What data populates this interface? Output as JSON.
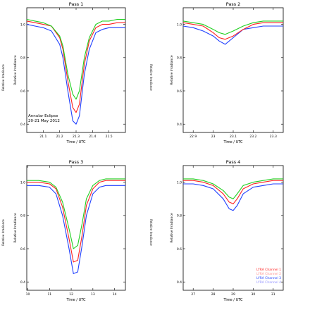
{
  "figure": {
    "ylabel_left_outer": "Relative Irradiance",
    "ylabel_right_outer": "Relative Irradiance"
  },
  "chart_data": [
    {
      "type": "line",
      "title": "Pass 1",
      "xlabel": "Time / UTC",
      "ylabel": "Relative Irradiance",
      "xlim": [
        21.0,
        21.6
      ],
      "ylim": [
        0.35,
        1.1
      ],
      "xticks": [
        21.1,
        21.2,
        21.3,
        21.4,
        21.5
      ],
      "yticks": [
        0.4,
        0.6,
        0.8,
        1.0
      ],
      "annotation": [
        "Annular Eclipse",
        "20-21 May 2012"
      ],
      "grid": false,
      "series": [
        {
          "color": "#2040ff",
          "x": [
            21.0,
            21.05,
            21.1,
            21.15,
            21.2,
            21.22,
            21.25,
            21.28,
            21.3,
            21.32,
            21.35,
            21.38,
            21.42,
            21.46,
            21.5,
            21.55,
            21.6
          ],
          "y": [
            1.0,
            0.99,
            0.98,
            0.96,
            0.88,
            0.8,
            0.6,
            0.42,
            0.4,
            0.45,
            0.7,
            0.85,
            0.95,
            0.97,
            0.98,
            0.98,
            0.98
          ]
        },
        {
          "color": "#ff2020",
          "x": [
            21.0,
            21.05,
            21.1,
            21.15,
            21.2,
            21.22,
            21.25,
            21.28,
            21.3,
            21.32,
            21.35,
            21.38,
            21.42,
            21.46,
            21.5,
            21.55,
            21.6
          ],
          "y": [
            1.02,
            1.01,
            1.0,
            0.99,
            0.92,
            0.85,
            0.66,
            0.5,
            0.47,
            0.52,
            0.76,
            0.9,
            0.98,
            1.0,
            1.0,
            1.01,
            1.01
          ]
        },
        {
          "color": "#20d020",
          "x": [
            21.0,
            21.05,
            21.1,
            21.15,
            21.2,
            21.22,
            21.25,
            21.28,
            21.3,
            21.32,
            21.35,
            21.38,
            21.42,
            21.46,
            21.5,
            21.55,
            21.6
          ],
          "y": [
            1.03,
            1.02,
            1.01,
            0.99,
            0.93,
            0.87,
            0.7,
            0.58,
            0.55,
            0.6,
            0.8,
            0.92,
            1.0,
            1.02,
            1.02,
            1.03,
            1.03
          ]
        }
      ]
    },
    {
      "type": "line",
      "title": "Pass 2",
      "xlabel": "Time / UTC",
      "ylabel": "Relative Irradiance",
      "xlim": [
        22.85,
        23.35
      ],
      "ylim": [
        0.35,
        1.1
      ],
      "xticks": [
        22.9,
        23.0,
        23.1,
        23.2,
        23.3
      ],
      "yticks": [
        0.4,
        0.6,
        0.8,
        1.0
      ],
      "grid": false,
      "series": [
        {
          "color": "#2040ff",
          "x": [
            22.85,
            22.9,
            22.95,
            23.0,
            23.03,
            23.06,
            23.1,
            23.15,
            23.2,
            23.25,
            23.3,
            23.35
          ],
          "y": [
            0.99,
            0.98,
            0.96,
            0.93,
            0.9,
            0.88,
            0.92,
            0.97,
            0.98,
            0.99,
            0.99,
            0.99
          ]
        },
        {
          "color": "#ff2020",
          "x": [
            22.85,
            22.9,
            22.95,
            23.0,
            23.03,
            23.06,
            23.1,
            23.15,
            23.2,
            23.25,
            23.3,
            23.35
          ],
          "y": [
            1.01,
            1.0,
            0.99,
            0.95,
            0.92,
            0.91,
            0.93,
            0.97,
            1.0,
            1.01,
            1.01,
            1.01
          ]
        },
        {
          "color": "#20d020",
          "x": [
            22.85,
            22.9,
            22.95,
            23.0,
            23.03,
            23.06,
            23.1,
            23.15,
            23.2,
            23.25,
            23.3,
            23.35
          ],
          "y": [
            1.02,
            1.01,
            1.0,
            0.97,
            0.95,
            0.94,
            0.96,
            0.99,
            1.01,
            1.02,
            1.02,
            1.02
          ]
        }
      ]
    },
    {
      "type": "line",
      "title": "Pass 3",
      "xlabel": "Time / UTC",
      "ylabel": "Relative Irradiance",
      "xlim": [
        9.95,
        14.5
      ],
      "ylim": [
        0.35,
        1.1
      ],
      "xticks": [
        10,
        11,
        12,
        13,
        14
      ],
      "yticks": [
        0.4,
        0.6,
        0.8,
        1.0
      ],
      "grid": false,
      "series": [
        {
          "color": "#2040ff",
          "x": [
            9.95,
            10.5,
            11.0,
            11.3,
            11.6,
            11.9,
            12.1,
            12.3,
            12.5,
            12.7,
            13.0,
            13.3,
            13.6,
            14.0,
            14.5
          ],
          "y": [
            0.98,
            0.98,
            0.97,
            0.93,
            0.8,
            0.6,
            0.45,
            0.46,
            0.62,
            0.8,
            0.93,
            0.97,
            0.98,
            0.98,
            0.98
          ]
        },
        {
          "color": "#ff2020",
          "x": [
            9.95,
            10.5,
            11.0,
            11.3,
            11.6,
            11.9,
            12.1,
            12.3,
            12.5,
            12.7,
            13.0,
            13.3,
            13.6,
            14.0,
            14.5
          ],
          "y": [
            1.0,
            1.0,
            0.99,
            0.96,
            0.85,
            0.66,
            0.52,
            0.53,
            0.68,
            0.86,
            0.96,
            1.0,
            1.01,
            1.01,
            1.01
          ]
        },
        {
          "color": "#20d020",
          "x": [
            9.95,
            10.5,
            11.0,
            11.3,
            11.6,
            11.9,
            12.1,
            12.3,
            12.5,
            12.7,
            13.0,
            13.3,
            13.6,
            14.0,
            14.5
          ],
          "y": [
            1.01,
            1.01,
            1.0,
            0.97,
            0.88,
            0.72,
            0.6,
            0.62,
            0.75,
            0.9,
            0.98,
            1.01,
            1.02,
            1.02,
            1.02
          ]
        }
      ]
    },
    {
      "type": "line",
      "title": "Pass 4",
      "xlabel": "Time / UTC",
      "ylabel": "Relative Irradiance",
      "xlim": [
        26.5,
        31.5
      ],
      "ylim": [
        0.35,
        1.1
      ],
      "xticks": [
        27,
        28,
        29,
        30,
        31
      ],
      "yticks": [
        0.4,
        0.6,
        0.8,
        1.0
      ],
      "grid": false,
      "legend": {
        "position": "bottom-right",
        "entries": [
          {
            "label": "LYRA Channel 1",
            "color": "#ff2020"
          },
          {
            "label": "LYRA Channel 2",
            "color": "#ff9090"
          },
          {
            "label": "LYRA Channel 3",
            "color": "#2040ff"
          },
          {
            "label": "LYRA Channel 4",
            "color": "#9090ff"
          }
        ]
      },
      "series": [
        {
          "color": "#2040ff",
          "x": [
            26.5,
            27.0,
            27.5,
            28.0,
            28.5,
            28.8,
            29.0,
            29.2,
            29.5,
            30.0,
            30.5,
            31.0,
            31.5
          ],
          "y": [
            0.99,
            0.99,
            0.98,
            0.96,
            0.9,
            0.84,
            0.83,
            0.86,
            0.93,
            0.97,
            0.98,
            0.99,
            0.99
          ]
        },
        {
          "color": "#ff2020",
          "x": [
            26.5,
            27.0,
            27.5,
            28.0,
            28.5,
            28.8,
            29.0,
            29.2,
            29.5,
            30.0,
            30.5,
            31.0,
            31.5
          ],
          "y": [
            1.01,
            1.01,
            1.0,
            0.98,
            0.93,
            0.88,
            0.87,
            0.9,
            0.96,
            0.99,
            1.0,
            1.01,
            1.01
          ]
        },
        {
          "color": "#20d020",
          "x": [
            26.5,
            27.0,
            27.5,
            28.0,
            28.5,
            28.8,
            29.0,
            29.2,
            29.5,
            30.0,
            30.5,
            31.0,
            31.5
          ],
          "y": [
            1.02,
            1.02,
            1.01,
            0.99,
            0.95,
            0.91,
            0.9,
            0.93,
            0.98,
            1.0,
            1.01,
            1.02,
            1.02
          ]
        }
      ]
    }
  ]
}
